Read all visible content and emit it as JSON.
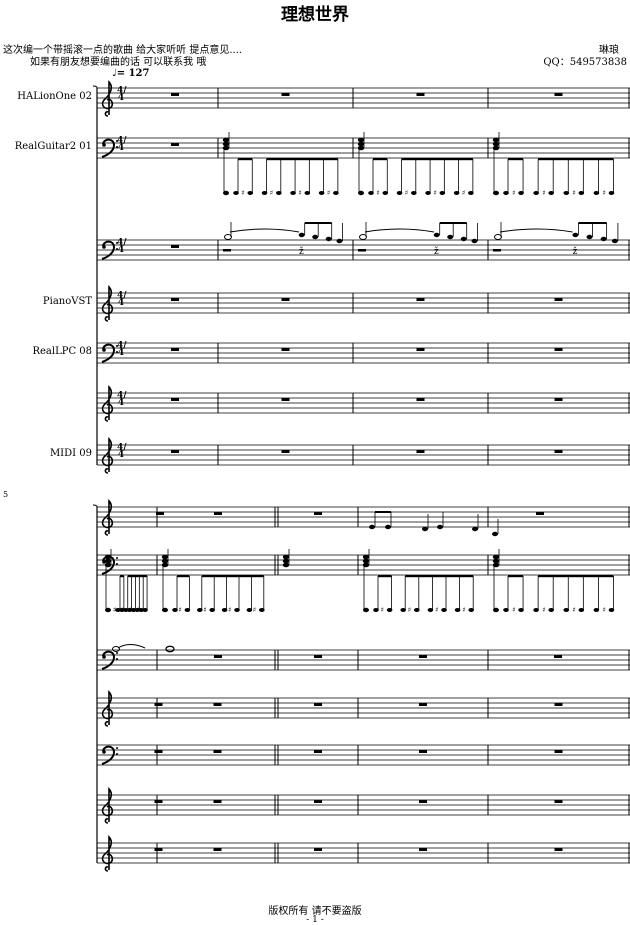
{
  "title": "理想世界",
  "description": [
    "这次编一个带摇滚一点的歌曲 给大家听听 提点意见....",
    "如果有朋友想要编曲的话 可以联系我 哦"
  ],
  "author": "琳琅",
  "contact": "QQ：549573838",
  "tempo": {
    "icon": "quarter-note-icon",
    "text": "♩= 127"
  },
  "instruments": [
    {
      "name": "HALionOne 02",
      "clef": "treble"
    },
    {
      "name": "RealGuitar2 01",
      "clef": "bass"
    },
    {
      "name": "",
      "clef": "bass"
    },
    {
      "name": "PianoVST",
      "clef": "treble"
    },
    {
      "name": "RealLPC 08",
      "clef": "bass"
    },
    {
      "name": "",
      "clef": "treble"
    },
    {
      "name": "MIDI 09",
      "clef": "treble"
    }
  ],
  "time_signature": "4/4",
  "system2_measure_number": "5",
  "footer": {
    "copyright": "版权所有 请不要盗版",
    "page": "- 1 -"
  }
}
